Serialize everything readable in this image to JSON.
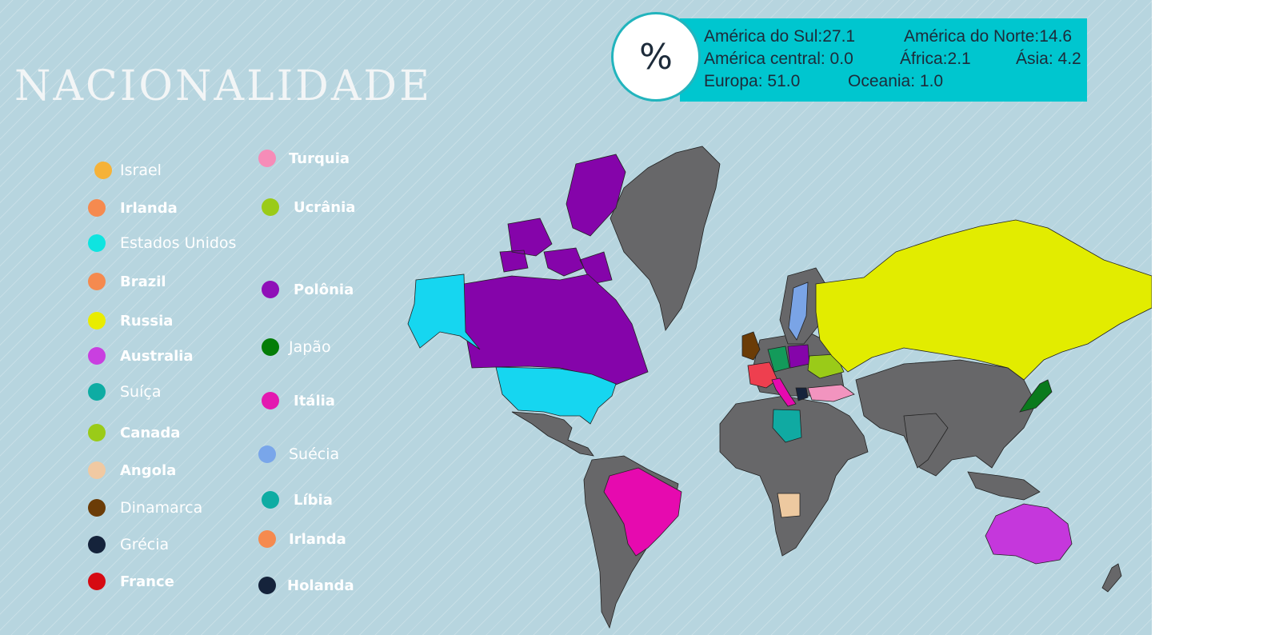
{
  "title": "NACIONALIDADE",
  "percent_symbol": "%",
  "stats": [
    "América do Sul:27.1",
    "América do Norte:14.6",
    "América central: 0.0",
    "África:2.1",
    "Ásia: 4.2",
    "Europa: 51.0",
    "Oceania: 1.0"
  ],
  "legend": [
    {
      "label": "Israel",
      "color": "#f6b238"
    },
    {
      "label": "Irlanda",
      "color": "#f58a4f"
    },
    {
      "label": "Estados Unidos",
      "color": "#0fe4e0"
    },
    {
      "label": "Brazil",
      "color": "#f58a4f"
    },
    {
      "label": "Russia",
      "color": "#e9ec00"
    },
    {
      "label": "Australia",
      "color": "#c93fe0"
    },
    {
      "label": "Suíça",
      "color": "#0eaca3"
    },
    {
      "label": "Canada",
      "color": "#9acb18"
    },
    {
      "label": "Angola",
      "color": "#f0c9a2"
    },
    {
      "label": "Dinamarca",
      "color": "#6b3c07"
    },
    {
      "label": "Grécia",
      "color": "#15233b"
    },
    {
      "label": "France",
      "color": "#d60a12"
    },
    {
      "label": "Turquia",
      "color": "#f68cb8"
    },
    {
      "label": "Ucrânia",
      "color": "#9acb18"
    },
    {
      "label": "Polônia",
      "color": "#8f0fb8"
    },
    {
      "label": "Japão",
      "color": "#047d08"
    },
    {
      "label": "Itália",
      "color": "#e319b0"
    },
    {
      "label": "Suécia",
      "color": "#79a6ea"
    },
    {
      "label": "Líbia",
      "color": "#0eaca3"
    },
    {
      "label": "Irlanda",
      "color": "#f58a4f"
    },
    {
      "label": "Holanda",
      "color": "#15233b"
    }
  ],
  "colors": {
    "background": "#b7d5df",
    "stats_box": "#00c6cf",
    "unhighlighted_country": "#676769"
  },
  "map_colors": {
    "usa": "#16d6f0",
    "canada": "#8504aa",
    "brazil": "#e60aaf",
    "russia": "#e2ec00",
    "australia": "#c537dc",
    "angola": "#edc9a0",
    "libya": "#10aaa2",
    "turkey": "#f294bf",
    "japan": "#0a7a1d",
    "france": "#ee3f4f",
    "uk": "#6b3c07",
    "sweden": "#7aa4e6",
    "poland": "#8504aa",
    "ukraine": "#9acb18",
    "germany": "#139a5a",
    "greece": "#15233b",
    "italy": "#e60aaf"
  }
}
